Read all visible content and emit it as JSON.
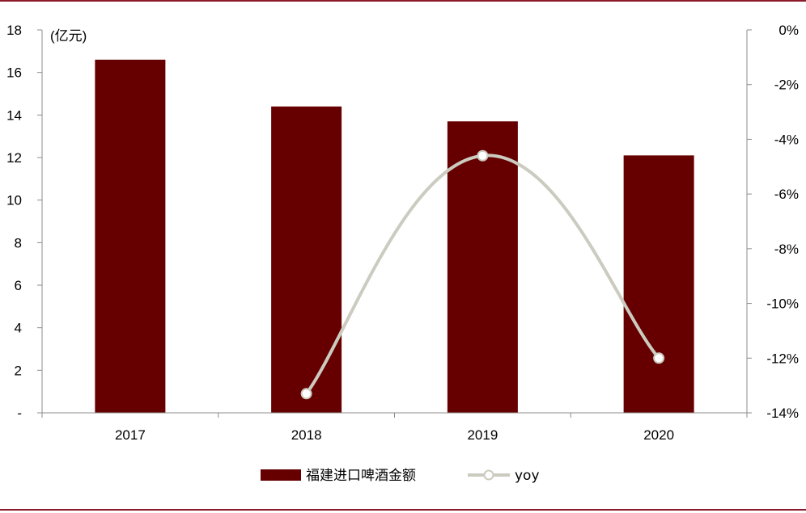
{
  "chart_data": {
    "type": "bar",
    "categories": [
      "2017",
      "2018",
      "2019",
      "2020"
    ],
    "series": [
      {
        "name": "福建进口啤酒金额",
        "type": "bar",
        "axis": "left",
        "values": [
          16.6,
          14.4,
          13.7,
          12.1
        ]
      },
      {
        "name": "yoy",
        "type": "line",
        "axis": "right",
        "values": [
          null,
          -13.3,
          -4.6,
          -12.0
        ]
      }
    ],
    "left_axis": {
      "unit_label": "(亿元)",
      "ylim": [
        0,
        18
      ],
      "ticks": [
        "-",
        "2",
        "4",
        "6",
        "8",
        "10",
        "12",
        "14",
        "16",
        "18"
      ]
    },
    "right_axis": {
      "ylim": [
        -14,
        0
      ],
      "ticks": [
        "-14%",
        "-12%",
        "-10%",
        "-8%",
        "-6%",
        "-4%",
        "-2%",
        "0%"
      ]
    },
    "legend": {
      "placement": "bottom"
    },
    "grid": false,
    "colors": {
      "bar": "#660000",
      "line": "#cbcbc0",
      "border": "#8b1a2b"
    }
  }
}
